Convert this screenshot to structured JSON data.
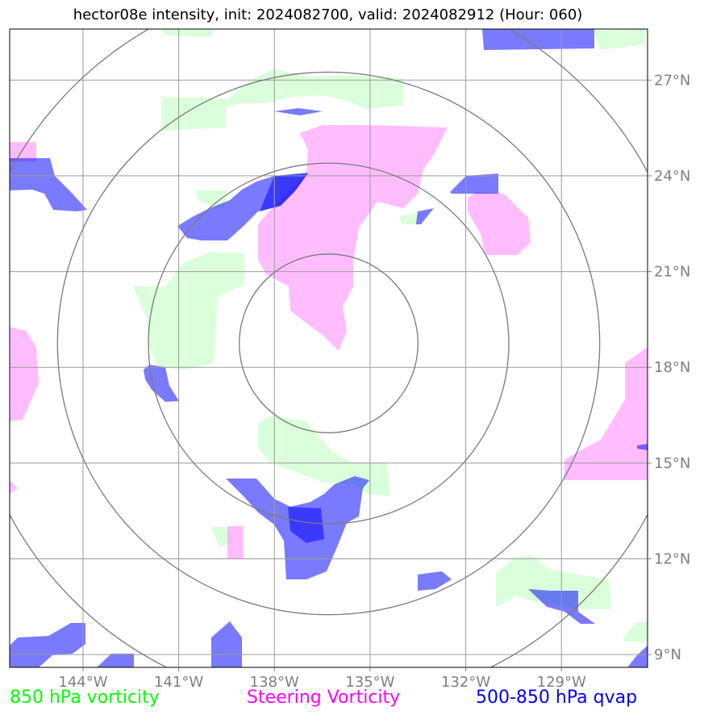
{
  "title": "hector08e intensity, init: 2024082700, valid: 2024082912 (Hour: 060)",
  "chart_data": {
    "type": "map",
    "x_ticks": [
      "144°W",
      "141°W",
      "138°W",
      "135°W",
      "132°W",
      "129°W"
    ],
    "x_tick_values": [
      -144,
      -141,
      -138,
      -135,
      -132,
      -129
    ],
    "y_ticks": [
      "9°N",
      "12°N",
      "15°N",
      "18°N",
      "21°N",
      "24°N",
      "27°N"
    ],
    "y_tick_values": [
      9,
      12,
      15,
      18,
      21,
      24,
      27
    ],
    "xlim": [
      -146.3,
      -126.3
    ],
    "ylim": [
      8.6,
      28.6
    ],
    "grid": true,
    "range_ring_center": {
      "lon": -136.3,
      "lat": 18.75
    },
    "range_ring_radii_deg": [
      2.8,
      5.65,
      8.5,
      11.35
    ],
    "series": [
      {
        "name": "850 hPa vorticity",
        "color": "#00ff00"
      },
      {
        "name": "Steering Vorticity",
        "color": "#ff00ff"
      },
      {
        "name": "500-850 hPa qvap",
        "color": "#0000ff"
      }
    ]
  }
}
